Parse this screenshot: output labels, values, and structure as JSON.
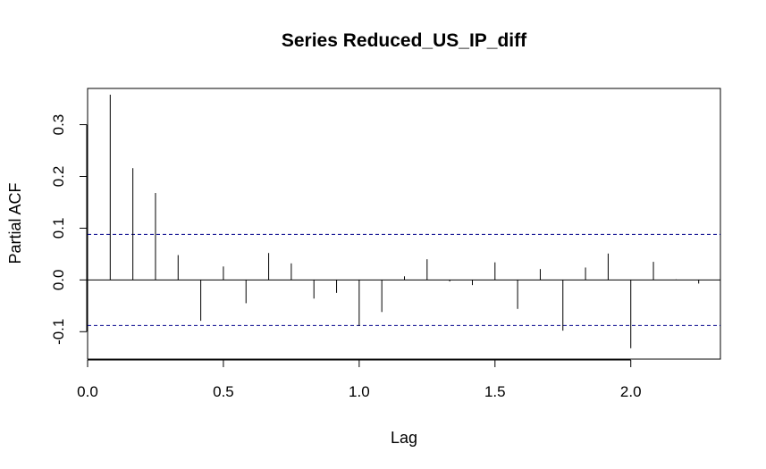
{
  "chart_data": {
    "type": "bar",
    "title": "Series  Reduced_US_IP_diff",
    "xlabel": "Lag",
    "ylabel": "Partial ACF",
    "xlim": [
      0,
      2.33
    ],
    "ylim": [
      -0.153,
      0.37
    ],
    "x_ticks": [
      {
        "value": 0.0,
        "label": "0.0"
      },
      {
        "value": 0.5,
        "label": "0.5"
      },
      {
        "value": 1.0,
        "label": "1.0"
      },
      {
        "value": 1.5,
        "label": "1.5"
      },
      {
        "value": 2.0,
        "label": "2.0"
      }
    ],
    "y_ticks": [
      {
        "value": -0.1,
        "label": "-0.1"
      },
      {
        "value": 0.0,
        "label": "0.0"
      },
      {
        "value": 0.1,
        "label": "0.1"
      },
      {
        "value": 0.2,
        "label": "0.2"
      },
      {
        "value": 0.3,
        "label": "0.3"
      }
    ],
    "confidence_bound": 0.088,
    "confidence_color": "#00008B",
    "bar_color": "#000000",
    "grid": false,
    "lags": [
      0.0833,
      0.1667,
      0.25,
      0.3333,
      0.4167,
      0.5,
      0.5833,
      0.6667,
      0.75,
      0.8333,
      0.9167,
      1.0,
      1.0833,
      1.1667,
      1.25,
      1.3333,
      1.4167,
      1.5,
      1.5833,
      1.6667,
      1.75,
      1.8333,
      1.9167,
      2.0,
      2.0833,
      2.1667,
      2.25
    ],
    "values": [
      0.358,
      0.216,
      0.168,
      0.048,
      -0.079,
      0.026,
      -0.045,
      0.052,
      0.032,
      -0.036,
      -0.025,
      -0.089,
      -0.062,
      0.007,
      0.04,
      -0.003,
      -0.01,
      0.034,
      -0.056,
      0.021,
      -0.098,
      0.024,
      0.051,
      -0.132,
      0.035,
      0.001,
      -0.007
    ]
  }
}
